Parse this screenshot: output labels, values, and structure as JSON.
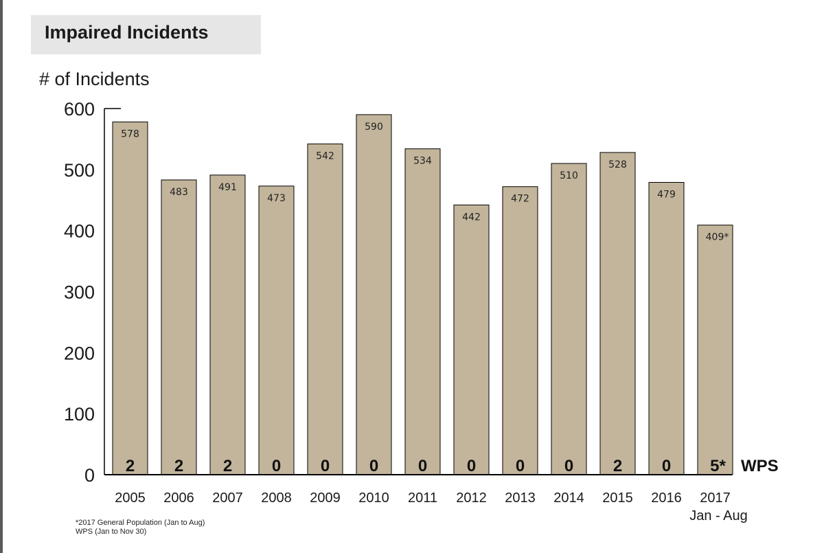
{
  "chart_data": {
    "type": "bar",
    "title": "Impaired Incidents",
    "ylabel": "# of Incidents",
    "ylim": [
      0,
      600
    ],
    "yticks": [
      0,
      100,
      200,
      300,
      400,
      500,
      600
    ],
    "categories": [
      "2005",
      "2006",
      "2007",
      "2008",
      "2009",
      "2010",
      "2011",
      "2012",
      "2013",
      "2014",
      "2015",
      "2016",
      "2017"
    ],
    "category_sublabels": [
      "",
      "",
      "",
      "",
      "",
      "",
      "",
      "",
      "",
      "",
      "",
      "",
      "Jan - Aug"
    ],
    "series": [
      {
        "values": [
          578,
          483,
          491,
          473,
          542,
          590,
          534,
          442,
          472,
          510,
          528,
          479,
          409
        ],
        "labels": [
          "578",
          "483",
          "491",
          "473",
          "542",
          "590",
          "534",
          "442",
          "472",
          "510",
          "528",
          "479",
          "409*"
        ],
        "color": "#c2b59b"
      },
      {
        "name": "WPS",
        "values": [
          2,
          2,
          2,
          0,
          0,
          0,
          0,
          0,
          0,
          0,
          2,
          0,
          5
        ],
        "labels": [
          "2",
          "2",
          "2",
          "0",
          "0",
          "0",
          "0",
          "0",
          "0",
          "0",
          "2",
          "0",
          "5*"
        ]
      }
    ],
    "grid": false,
    "legend": "none"
  },
  "footnotes": [
    "*2017 General Population (Jan to Aug)",
    "WPS (Jan to Nov 30)"
  ]
}
